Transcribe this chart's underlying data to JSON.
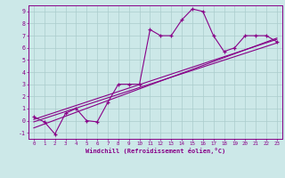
{
  "bg_color": "#cce8e8",
  "grid_color": "#aacccc",
  "line_color": "#880088",
  "xlabel": "Windchill (Refroidissement éolien,°C)",
  "xlim": [
    -0.5,
    23.5
  ],
  "ylim": [
    -1.5,
    9.5
  ],
  "xticks": [
    0,
    1,
    2,
    3,
    4,
    5,
    6,
    7,
    8,
    9,
    10,
    11,
    12,
    13,
    14,
    15,
    16,
    17,
    18,
    19,
    20,
    21,
    22,
    23
  ],
  "yticks": [
    -1,
    0,
    1,
    2,
    3,
    4,
    5,
    6,
    7,
    8,
    9
  ],
  "series1_x": [
    0,
    1,
    2,
    3,
    4,
    5,
    6,
    7,
    8,
    9,
    10,
    11,
    12,
    13,
    14,
    15,
    16,
    17,
    18,
    19,
    20,
    21,
    22,
    23
  ],
  "series1_y": [
    0.3,
    -0.1,
    -1.1,
    0.6,
    1.0,
    0.0,
    -0.1,
    1.5,
    3.0,
    3.0,
    3.0,
    7.5,
    7.0,
    7.0,
    8.3,
    9.2,
    9.0,
    7.0,
    5.7,
    6.0,
    7.0,
    7.0,
    7.0,
    6.5
  ],
  "line2_x": [
    0,
    23
  ],
  "line2_y": [
    0.1,
    6.7
  ],
  "line3_x": [
    0,
    23
  ],
  "line3_y": [
    -0.6,
    6.8
  ],
  "line4_x": [
    0,
    23
  ],
  "line4_y": [
    -0.1,
    6.4
  ]
}
